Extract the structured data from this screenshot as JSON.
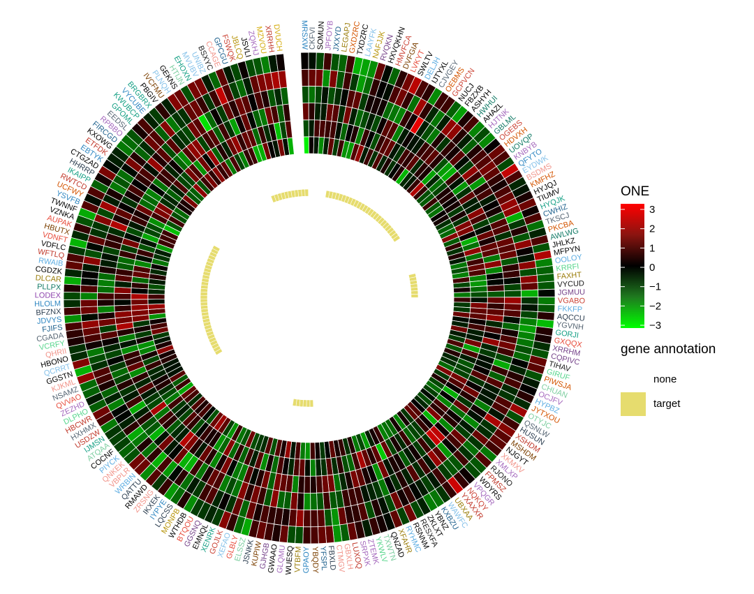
{
  "chart_data": {
    "type": "heatmap",
    "layout": "circular",
    "title": "",
    "rings": 6,
    "color_legend": {
      "title": "ONE",
      "ticks": [
        3,
        2,
        1,
        0,
        -1,
        -2,
        -3
      ],
      "range": [
        -3.2,
        3.3
      ],
      "low_color": "#00ff00",
      "mid_color": "#000000",
      "high_color": "#ff0000"
    },
    "annotation_legend": {
      "title": "gene annotation",
      "items": [
        {
          "label": "none",
          "color": "#ffffff"
        },
        {
          "label": "target",
          "color": "#e6dc6e"
        }
      ]
    },
    "labels": [
      "MRSXW",
      "CKFVI",
      "SOMUN",
      "JPFOYB",
      "JXXYD",
      "LEGAPJ",
      "GXDZRC",
      "TXDZRC",
      "LAAYFK",
      "NAFJJK",
      "RVQKN",
      "HXVQKHN",
      "HMVFCA",
      "DVFGIA",
      "LVKYT",
      "SWLTV",
      "DELJH",
      "IJTYXL",
      "CJVGEY",
      "OEBMS",
      "GCPVCN",
      "NUCJ",
      "FBZXB",
      "ASHYH",
      "HWHUI",
      "AHAZL",
      "HJTNK",
      "GBLML",
      "OGEBS",
      "HDVXH",
      "UOVQP",
      "KNBYB",
      "QFYTO",
      "EYDWK",
      "BSDMS",
      "KMFHZ",
      "HYJQJ",
      "TIUMV",
      "HYQJK",
      "CWHIZ",
      "TKSCJ",
      "PKCBA",
      "AWLWG",
      "JHLKZ",
      "MFPYN",
      "OOLOY",
      "KRRFI",
      "FAXHT",
      "VYCUD",
      "JGMUU",
      "VGABO",
      "FKKFP",
      "AQCCU",
      "YGVNH",
      "GORJI",
      "GXQQX",
      "XRRHM",
      "CQPIVC",
      "TIHAV",
      "GIRUF",
      "PIWSJA",
      "CHUAN",
      "OCJFV",
      "HYPBZ",
      "JYTXOU",
      "OTYJC",
      "QSNLW",
      "HUSUN",
      "XSHDM",
      "MSHDM",
      "NJGYT",
      "XKMXV",
      "XMLXP",
      "RJONO",
      "FPMSZ",
      "WDYRS",
      "VPQGR",
      "NQKQY",
      "YXAXXR",
      "UBXAA",
      "WAWFC",
      "KXBZU",
      "YBNZ",
      "ZKLXT",
      "RESXFA",
      "RSNNM",
      "RYHMC",
      "XFAHR",
      "QNZAD",
      "TXWTN",
      "YKWLV",
      "ZTEMK",
      "SRPXK",
      "LUXOQ",
      "GBXLH",
      "CTMGV",
      "FBXLD",
      "YFSPL",
      "YBQDY",
      "GPAOY",
      "VTBFM",
      "WUESQ",
      "GLQMU",
      "GWAAO",
      "GJHGB",
      "KUPIW",
      "JSNKK",
      "ELSSZ",
      "GLBLY",
      "XEFAO",
      "GOJLK",
      "XENRK",
      "EMNQL",
      "GGSNQ",
      "BTQOU",
      "WTHDB",
      "MONPB",
      "LQCSS",
      "IYPYE",
      "IKXEK",
      "ZRSNG",
      "RMAWD",
      "QATTU",
      "WRBIN",
      "VBPLR",
      "QNKEK",
      "PIYCK",
      "COCNF",
      "ATQAA",
      "IJMSN",
      "USDZW",
      "HXHMX",
      "HBCWR",
      "DLPHO",
      "ZEZHD",
      "QVVAO",
      "NSAMZ",
      "KJKML",
      "GGSTN",
      "QCRRT",
      "HBONO",
      "QHRII",
      "VCRFY",
      "CGADA",
      "FJIFS",
      "JDVYS",
      "BFZNX",
      "HLOLM",
      "LODEX",
      "PLLPX",
      "DLCAR",
      "CGDZK",
      "RWAIB",
      "WFTLQ",
      "VDFLC",
      "VDNFT",
      "HBUTX",
      "AUPAK",
      "VZNKA",
      "TWNNF",
      "YSVFB",
      "UCFWY",
      "RWTCD",
      "IKAIPP",
      "HHRRP",
      "CTGZAD",
      "EBTYK",
      "ETFDK",
      "KXOWG",
      "FIRCGD",
      "RPBBO",
      "EEDSL",
      "GPOML",
      "KWUBCP",
      "VYCUBE",
      "BRGBRX",
      "PBGIV",
      "IVCFMU",
      "PLNQH",
      "GEKNS",
      "HTIJN",
      "EHOXN",
      "MVUBV",
      "UNIBZ",
      "BSXYC",
      "CCAGE",
      "GPCGU",
      "FSWQK",
      "JBLCQ",
      "JSVLI",
      "ZQKHJ",
      "MZVOU",
      "XRRHH",
      "DVUCH"
    ],
    "annotation": {
      "target_segments": [
        {
          "label": "target",
          "from": 186,
          "to": 196
        },
        {
          "label": "target",
          "from": 131,
          "to": 163
        },
        {
          "label": "target",
          "from": 98,
          "to": 103
        },
        {
          "label": "target",
          "from": 43,
          "to": 49
        },
        {
          "label": "target",
          "from": 6,
          "to": 31
        }
      ]
    },
    "seed": 71
  }
}
